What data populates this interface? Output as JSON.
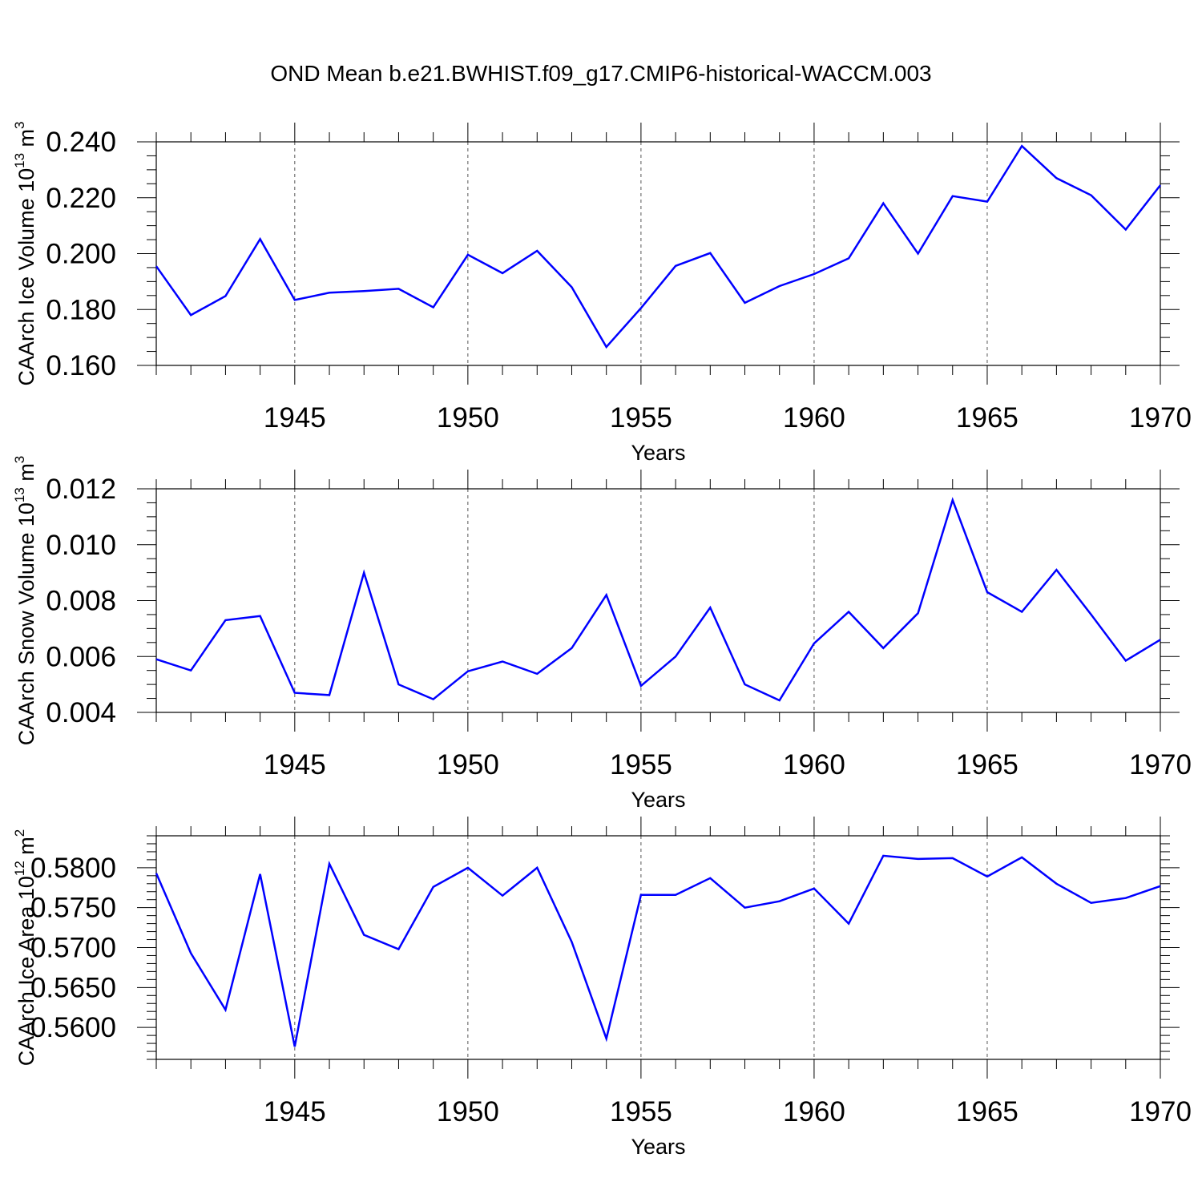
{
  "title": "OND Mean b.e21.BWHIST.f09_g17.CMIP6-historical-WACCM.003",
  "colors": {
    "line": "#0000ff",
    "axis": "#000000",
    "grid": "#555555"
  },
  "chart_data": [
    {
      "type": "line",
      "title": "OND Mean b.e21.BWHIST.f09_g17.CMIP6-historical-WACCM.003",
      "xlabel": "Years",
      "ylabel": {
        "text": "CAArch Ice Volume 10",
        "exp": "13",
        "unit": " m",
        "unit_exp": "3"
      },
      "xlim": [
        1941,
        1970
      ],
      "ylim": [
        0.16,
        0.24
      ],
      "xticks": [
        1945,
        1950,
        1955,
        1960,
        1965,
        1970
      ],
      "yticks": [
        "0.160",
        "0.180",
        "0.200",
        "0.220",
        "0.240"
      ],
      "y_minor_step": 0.005,
      "x": [
        1941,
        1942,
        1943,
        1944,
        1945,
        1946,
        1947,
        1948,
        1949,
        1950,
        1951,
        1952,
        1953,
        1954,
        1955,
        1956,
        1957,
        1958,
        1959,
        1960,
        1961,
        1962,
        1963,
        1964,
        1965,
        1966,
        1967,
        1968,
        1969,
        1970
      ],
      "series": [
        {
          "name": "CAArch Ice Volume",
          "values": [
            0.1955,
            0.178,
            0.1848,
            0.2052,
            0.1834,
            0.186,
            0.1866,
            0.1874,
            0.1808,
            0.1996,
            0.193,
            0.201,
            0.188,
            0.1666,
            0.1805,
            0.1956,
            0.2002,
            0.1824,
            0.1884,
            0.1927,
            0.1983,
            0.218,
            0.2,
            0.2206,
            0.2186,
            0.2385,
            0.227,
            0.2209,
            0.2086,
            0.2245
          ]
        }
      ]
    },
    {
      "type": "line",
      "xlabel": "Years",
      "ylabel": {
        "text": "CAArch Snow Volume 10",
        "exp": "13",
        "unit": " m",
        "unit_exp": "3"
      },
      "xlim": [
        1941,
        1970
      ],
      "ylim": [
        0.004,
        0.012
      ],
      "xticks": [
        1945,
        1950,
        1955,
        1960,
        1965,
        1970
      ],
      "yticks": [
        "0.004",
        "0.006",
        "0.008",
        "0.010",
        "0.012"
      ],
      "y_minor_step": 0.0005,
      "x": [
        1941,
        1942,
        1943,
        1944,
        1945,
        1946,
        1947,
        1948,
        1949,
        1950,
        1951,
        1952,
        1953,
        1954,
        1955,
        1956,
        1957,
        1958,
        1959,
        1960,
        1961,
        1962,
        1963,
        1964,
        1965,
        1966,
        1967,
        1968,
        1969,
        1970
      ],
      "series": [
        {
          "name": "CAArch Snow Volume",
          "values": [
            0.0059,
            0.0055,
            0.0073,
            0.00745,
            0.0047,
            0.00462,
            0.009,
            0.005,
            0.00447,
            0.00547,
            0.00582,
            0.00538,
            0.0063,
            0.0082,
            0.00495,
            0.006,
            0.00775,
            0.005,
            0.00443,
            0.00647,
            0.0076,
            0.0063,
            0.00755,
            0.0116,
            0.0083,
            0.0076,
            0.0091,
            0.0075,
            0.00585,
            0.0066
          ]
        }
      ]
    },
    {
      "type": "line",
      "xlabel": "Years",
      "ylabel": {
        "text": "CAArch Ice Area 10",
        "exp": "12",
        "unit": " m",
        "unit_exp": "2"
      },
      "xlim": [
        1941,
        1970
      ],
      "ylim": [
        0.556,
        0.584
      ],
      "xticks": [
        1945,
        1950,
        1955,
        1960,
        1965,
        1970
      ],
      "yticks": [
        "0.5600",
        "0.5650",
        "0.5700",
        "0.5750",
        "0.5800"
      ],
      "y_minor_step": 0.001,
      "x": [
        1941,
        1942,
        1943,
        1944,
        1945,
        1946,
        1947,
        1948,
        1949,
        1950,
        1951,
        1952,
        1953,
        1954,
        1955,
        1956,
        1957,
        1958,
        1959,
        1960,
        1961,
        1962,
        1963,
        1964,
        1965,
        1966,
        1967,
        1968,
        1969,
        1970
      ],
      "series": [
        {
          "name": "CAArch Ice Area",
          "values": [
            0.5793,
            0.5693,
            0.5622,
            0.5792,
            0.5576,
            0.5805,
            0.5716,
            0.5698,
            0.5776,
            0.58,
            0.5765,
            0.58,
            0.5707,
            0.5586,
            0.5766,
            0.5766,
            0.5787,
            0.575,
            0.5758,
            0.5774,
            0.573,
            0.5815,
            0.5811,
            0.5812,
            0.5789,
            0.5813,
            0.578,
            0.5756,
            0.5762,
            0.5777
          ]
        }
      ]
    }
  ]
}
